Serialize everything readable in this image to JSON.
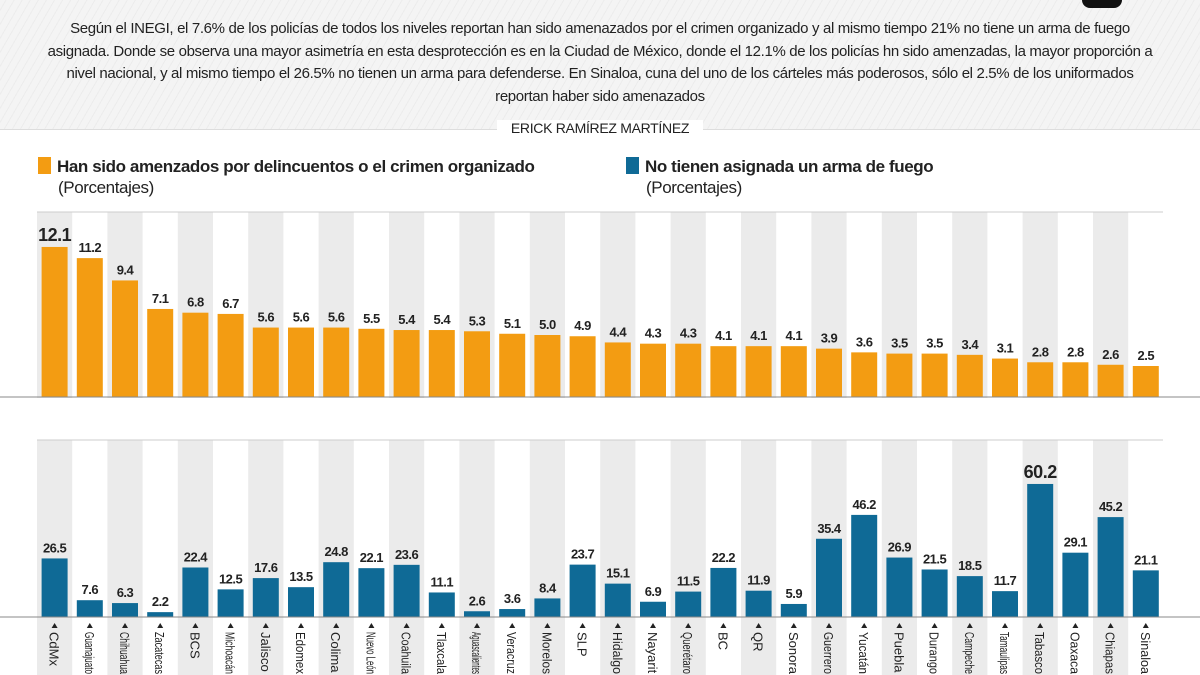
{
  "intro": "Según el INEGI, el 7.6% de los policías de todos los niveles reportan han sido amenazados por el crimen organizado y al mismo tiempo 21% no tiene un arma de fuego asignada. Donde se observa una mayor asimetría en esta desprotección es en la Ciudad de México, donde el 12.1% de los policías hn sido amenzadas, la mayor proporción a nivel nacional, y al mismo tiempo el 26.5% no tienen un arma para defenderse. En Sinaloa, cuna del uno de los cárteles más poderosos, sólo el 2.5% de los uniformados reportan haber sido amenazados",
  "author": "ERICK RAMÍREZ MARTÍNEZ",
  "chart_data": {
    "type": "bar",
    "categories": [
      "CdMx",
      "Guanajuato",
      "Chihuahua",
      "Zacatecas",
      "BCS",
      "Michoacán",
      "Jalisco",
      "Edomex",
      "Colima",
      "Nuevo León",
      "Coahuila",
      "Tlaxcala",
      "Aguascalientes",
      "Veracruz",
      "Morelos",
      "SLP",
      "Hidalgo",
      "Nayarit",
      "Querétaro",
      "BC",
      "QR",
      "Sonora",
      "Guerrero",
      "Yucatán",
      "Puebla",
      "Durango",
      "Campeche",
      "Tamaulipas",
      "Tabasco",
      "Oaxaca",
      "Chiapas",
      "Sinaloa"
    ],
    "series": [
      {
        "name": "Han sido amenzados por delincuentos o el crimen organizado",
        "unit": "(Porcentajes)",
        "color": "#f39c12",
        "values": [
          12.1,
          11.2,
          9.4,
          7.1,
          6.8,
          6.7,
          5.6,
          5.6,
          5.6,
          5.5,
          5.4,
          5.4,
          5.3,
          5.1,
          5.0,
          4.9,
          4.4,
          4.3,
          4.3,
          4.1,
          4.1,
          4.1,
          3.9,
          3.6,
          3.5,
          3.5,
          3.4,
          3.1,
          2.8,
          2.8,
          2.6,
          2.5
        ],
        "labels": [
          "12.1",
          "11.2",
          "9.4",
          "7.1",
          "6.8",
          "6.7",
          "5.6",
          "5.6",
          "5.6",
          "5.5",
          "5.4",
          "5.4",
          "5.3",
          "5.1",
          "5.0",
          "4.9",
          "4.4",
          "4.3",
          "4.3",
          "4.1",
          "4.1",
          "4.1",
          "3.9",
          "3.6",
          "3.5",
          "3.5",
          "3.4",
          "3.1",
          "2.8",
          "2.8",
          "2.6",
          "2.5"
        ]
      },
      {
        "name": "No tienen asignada un arma de fuego",
        "unit": "(Porcentajes)",
        "color": "#0f6a96",
        "values": [
          26.5,
          7.6,
          6.3,
          2.2,
          22.4,
          12.5,
          17.6,
          13.5,
          24.8,
          22.1,
          23.6,
          11.1,
          2.6,
          3.6,
          8.4,
          23.7,
          15.1,
          6.9,
          11.5,
          22.2,
          11.9,
          5.9,
          35.4,
          46.2,
          26.9,
          21.5,
          18.5,
          11.7,
          60.2,
          29.1,
          45.2,
          21.1
        ],
        "labels": [
          "26.5",
          "7.6",
          "6.3",
          "2.2",
          "22.4",
          "12.5",
          "17.6",
          "13.5",
          "24.8",
          "22.1",
          "23.6",
          "11.1",
          "2.6",
          "3.6",
          "8.4",
          "23.7",
          "15.1",
          "6.9",
          "11.5",
          "22.2",
          "11.9",
          "5.9",
          "35.4",
          "46.2",
          "26.9",
          "21.5",
          "18.5",
          "11.7",
          "60.2",
          "29.1",
          "45.2",
          "21.1"
        ]
      }
    ],
    "grid": false,
    "legend": "top"
  }
}
